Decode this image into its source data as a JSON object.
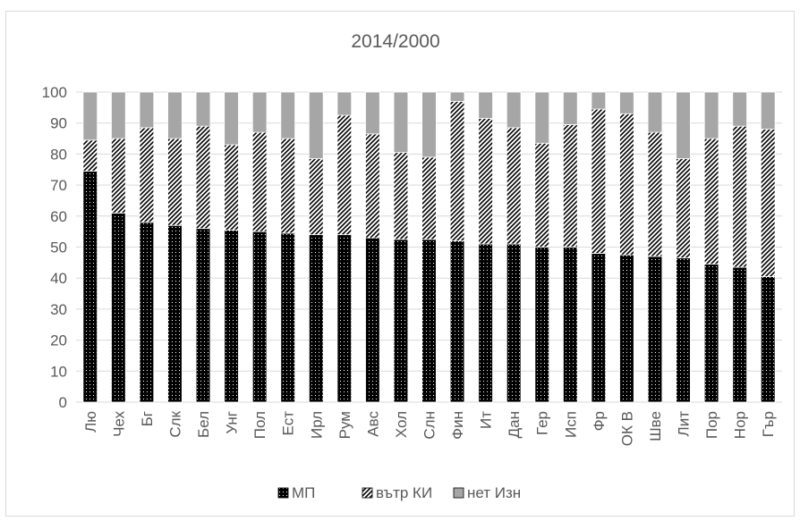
{
  "chart_data": {
    "type": "bar",
    "stacked": true,
    "title": "2014/2000",
    "ylim": [
      0,
      100
    ],
    "yticks": [
      "0",
      "10",
      "20",
      "30",
      "40",
      "50",
      "60",
      "70",
      "80",
      "90",
      "100"
    ],
    "grid": true,
    "legend_position": "bottom",
    "categories": [
      "Лю",
      "Чех",
      "Бг",
      "Слк",
      "Бел",
      "Унг",
      "Пол",
      "Ест",
      "Ирл",
      "Рум",
      "Авс",
      "Хол",
      "Слн",
      "Фин",
      "Ит",
      "Дан",
      "Гер",
      "Исп",
      "Фр",
      "ОК В",
      "Шве",
      "Лит",
      "Пор",
      "Нор",
      "Гър"
    ],
    "series": [
      {
        "name": "МП",
        "pattern": "dotted-black",
        "values": [
          74.5,
          61,
          58,
          57,
          56,
          55.5,
          55,
          54.5,
          54,
          54,
          53,
          52.5,
          52.5,
          52,
          51,
          51,
          50,
          50,
          48,
          47.5,
          47,
          46.5,
          44.5,
          43.5,
          40.5
        ]
      },
      {
        "name": "вътр КИ",
        "pattern": "diagonal-hatch",
        "values": [
          10,
          24,
          30.5,
          28,
          33,
          27.5,
          32,
          30.5,
          24.5,
          38.5,
          33.5,
          28,
          26.5,
          45,
          40.5,
          37.5,
          33.5,
          39.5,
          46.5,
          45.5,
          40,
          32,
          40.5,
          45.5,
          47.5
        ]
      },
      {
        "name": "нет Изн",
        "color": "#a6a6a6",
        "values": [
          15.5,
          15,
          11.5,
          15,
          11,
          17,
          13,
          15,
          21.5,
          7.5,
          13.5,
          19.5,
          21,
          3,
          8.5,
          11.5,
          16.5,
          10.5,
          5.5,
          7,
          13,
          21.5,
          15,
          11,
          12
        ]
      }
    ]
  }
}
